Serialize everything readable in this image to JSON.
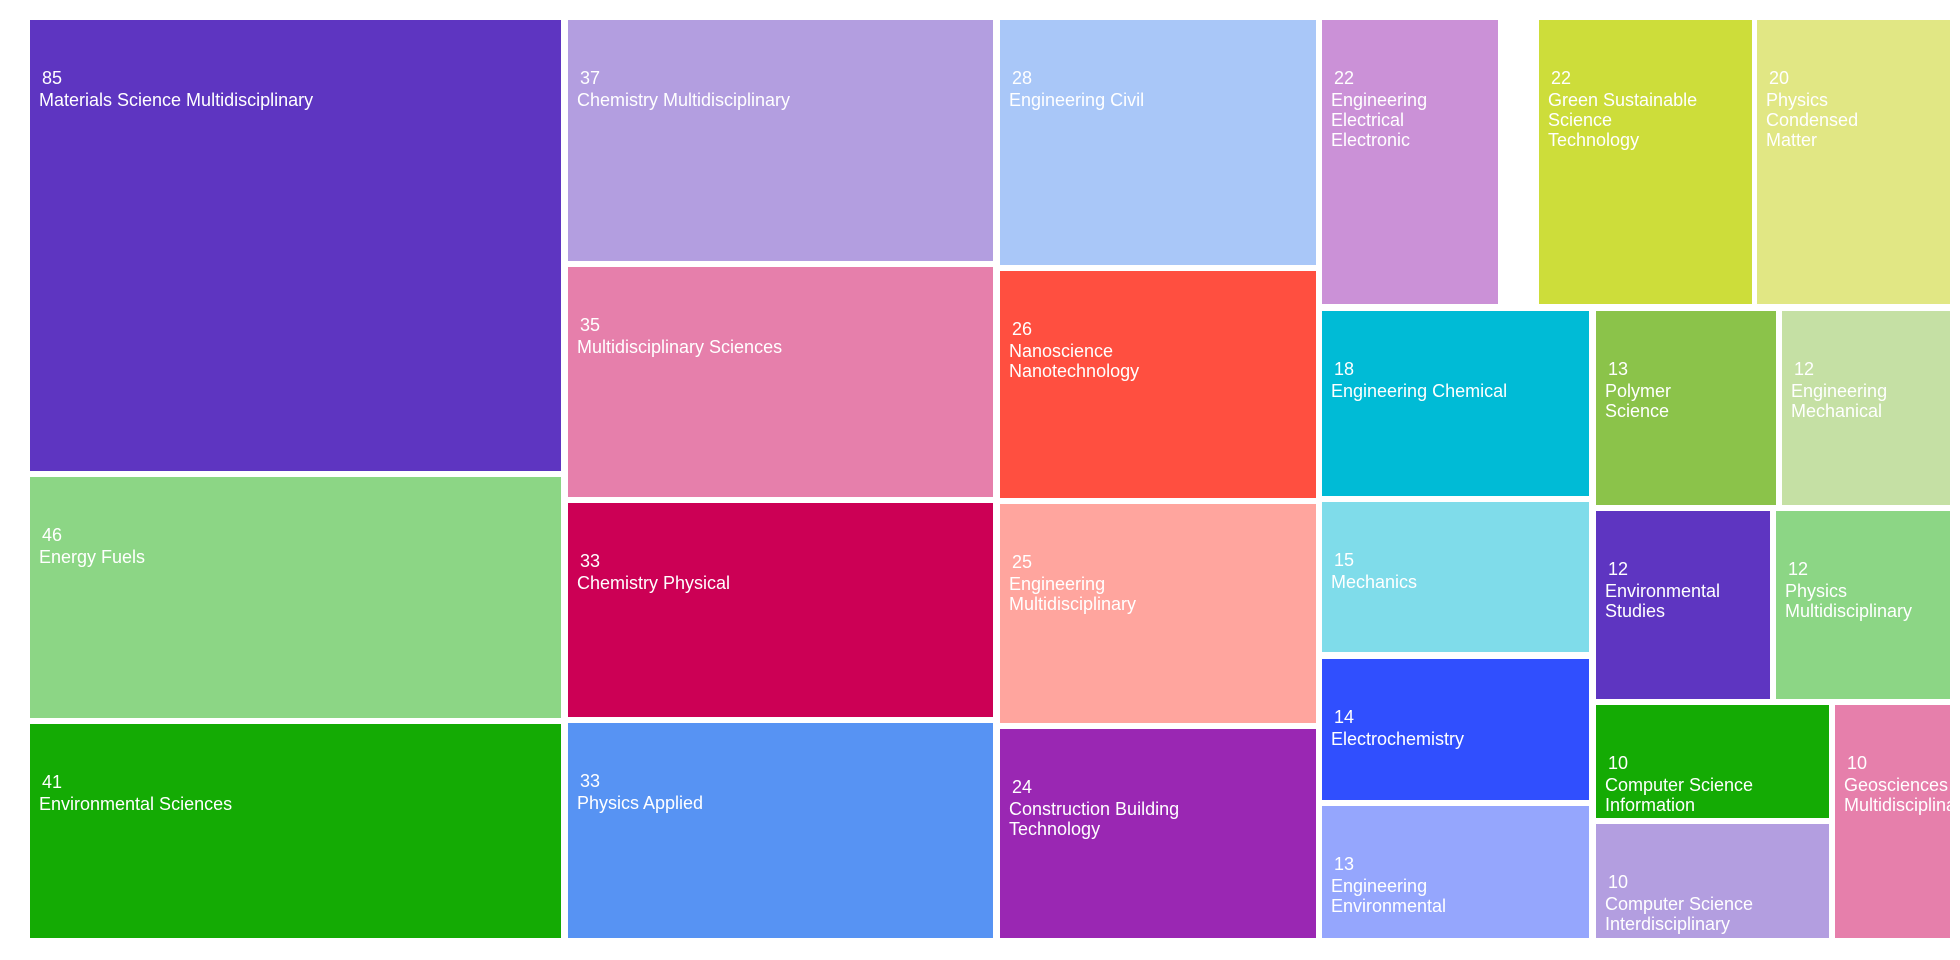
{
  "chart_data": {
    "type": "treemap",
    "items": [
      {
        "name": "Materials Science Multidisciplinary",
        "value": 85,
        "color": "#5e35c1",
        "lines": [
          "Materials Science Multidisciplinary"
        ]
      },
      {
        "name": "Energy Fuels",
        "value": 46,
        "color": "#8cd685",
        "lines": [
          "Energy Fuels"
        ]
      },
      {
        "name": "Environmental Sciences",
        "value": 41,
        "color": "#14ab04",
        "lines": [
          "Environmental Sciences"
        ]
      },
      {
        "name": "Chemistry Multidisciplinary",
        "value": 37,
        "color": "#b39ee0",
        "lines": [
          "Chemistry Multidisciplinary"
        ]
      },
      {
        "name": "Multidisciplinary Sciences",
        "value": 35,
        "color": "#e67fab",
        "lines": [
          "Multidisciplinary Sciences"
        ]
      },
      {
        "name": "Chemistry Physical",
        "value": 33,
        "color": "#cc0055",
        "lines": [
          "Chemistry Physical"
        ]
      },
      {
        "name": "Physics Applied",
        "value": 33,
        "color": "#5793f3",
        "lines": [
          "Physics Applied"
        ]
      },
      {
        "name": "Engineering Civil",
        "value": 28,
        "color": "#a9c7f8",
        "lines": [
          "Engineering Civil"
        ]
      },
      {
        "name": "Nanoscience Nanotechnology",
        "value": 26,
        "color": "#ff4f40",
        "lines": [
          "Nanoscience",
          "Nanotechnology"
        ]
      },
      {
        "name": "Engineering Multidisciplinary",
        "value": 25,
        "color": "#ffa59e",
        "lines": [
          "Engineering",
          "Multidisciplinary"
        ]
      },
      {
        "name": "Construction Building Technology",
        "value": 24,
        "color": "#9a27b3",
        "lines": [
          "Construction Building",
          "Technology"
        ]
      },
      {
        "name": "Engineering Electrical Electronic",
        "value": 22,
        "color": "#cb91d7",
        "lines": [
          "Engineering",
          "Electrical",
          "Electronic"
        ]
      },
      {
        "name": "Green Sustainable Science Technology",
        "value": 22,
        "color": "#cddd3a",
        "lines": [
          "Green Sustainable",
          "Science",
          "Technology"
        ]
      },
      {
        "name": "Physics Condensed Matter",
        "value": 20,
        "color": "#e1e784",
        "lines": [
          "Physics",
          "Condensed",
          "Matter"
        ]
      },
      {
        "name": "Engineering Chemical",
        "value": 18,
        "color": "#00bbd6",
        "lines": [
          "Engineering Chemical"
        ]
      },
      {
        "name": "Mechanics",
        "value": 15,
        "color": "#7fdcea",
        "lines": [
          "Mechanics"
        ]
      },
      {
        "name": "Electrochemistry",
        "value": 14,
        "color": "#304ffe",
        "lines": [
          "Electrochemistry"
        ]
      },
      {
        "name": "Engineering Environmental",
        "value": 13,
        "color": "#95a6fd",
        "lines": [
          "Engineering",
          "Environmental"
        ]
      },
      {
        "name": "Polymer Science",
        "value": 13,
        "color": "#8bc34a",
        "lines": [
          "Polymer",
          "Science"
        ]
      },
      {
        "name": "Engineering Mechanical",
        "value": 12,
        "color": "#c5e0a4",
        "lines": [
          "Engineering",
          "Mechanical"
        ]
      },
      {
        "name": "Environmental Studies",
        "value": 12,
        "color": "#5e35c1",
        "lines": [
          "Environmental",
          "Studies"
        ]
      },
      {
        "name": "Physics Multidisciplinary",
        "value": 12,
        "color": "#8cd685",
        "lines": [
          "Physics",
          "Multidisciplinary"
        ]
      },
      {
        "name": "Computer Science Information",
        "value": 10,
        "color": "#14ab04",
        "lines": [
          "Computer Science",
          "Information"
        ]
      },
      {
        "name": "Computer Science Interdisciplinary",
        "value": 10,
        "color": "#b39ee0",
        "lines": [
          "Computer Science",
          "Interdisciplinary"
        ]
      },
      {
        "name": "Geosciences Multidisciplinary",
        "value": 10,
        "color": "#e67fab",
        "lines": [
          "Geosciences",
          "Multidisciplinary"
        ]
      }
    ]
  }
}
